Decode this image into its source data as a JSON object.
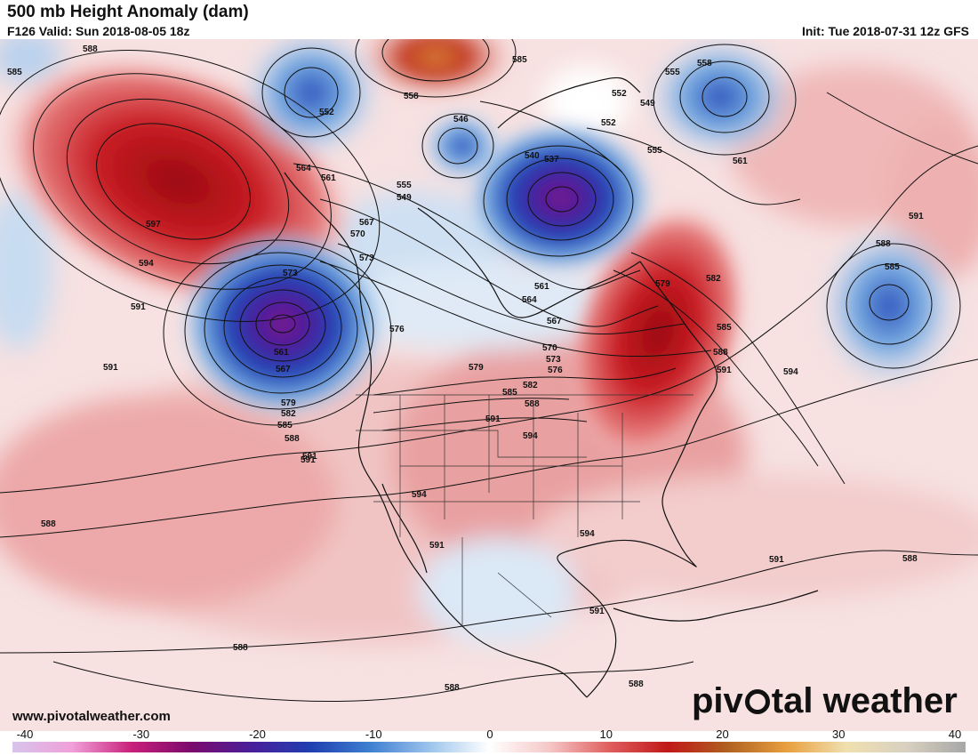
{
  "header": {
    "title": "500 mb Height Anomaly (dam)",
    "valid": "F126 Valid: Sun 2018-08-05 18z",
    "init": "Init: Tue 2018-07-31 12z GFS"
  },
  "footer": {
    "website": "www.pivotalweather.com",
    "brand_left": "piv",
    "brand_right": "tal weather"
  },
  "colorbar": {
    "ticks": [
      "-40",
      "-30",
      "-20",
      "-10",
      "0",
      "10",
      "20",
      "30",
      "40"
    ],
    "min": -40,
    "max": 40,
    "stops": [
      "#d8c4ec",
      "#f0a0d8",
      "#c8207a",
      "#7a0a6c",
      "#4a1e9a",
      "#1f3fb0",
      "#3f7fd0",
      "#9cc4ec",
      "#ffffff",
      "#f6c8c8",
      "#e06060",
      "#c01818",
      "#b06020",
      "#e8a040",
      "#f0e0b0",
      "#d8d0c0",
      "#a8a8a8"
    ]
  },
  "anomaly_centers": [
    {
      "kind": "positive",
      "label": "597",
      "strength": 0.95
    },
    {
      "kind": "negative",
      "label": "561",
      "strength": 0.95
    },
    {
      "kind": "negative",
      "label": "537",
      "strength": 1.0
    },
    {
      "kind": "negative",
      "label": "549",
      "strength": 0.7
    },
    {
      "kind": "negative",
      "label": "585",
      "strength": 0.55
    },
    {
      "kind": "positive",
      "label": "579",
      "strength": 0.8
    },
    {
      "kind": "positive",
      "label": "558",
      "strength": 0.7
    }
  ],
  "contour_labels": [
    "585",
    "588",
    "597",
    "594",
    "591",
    "564",
    "561",
    "555",
    "552",
    "549",
    "558",
    "546",
    "540",
    "537",
    "552",
    "555",
    "558",
    "549",
    "552",
    "561",
    "591",
    "588",
    "585",
    "573",
    "567",
    "570",
    "573",
    "561",
    "567",
    "576",
    "579",
    "582",
    "585",
    "588",
    "591",
    "591",
    "588",
    "579",
    "582",
    "585",
    "588",
    "591",
    "594",
    "576",
    "573",
    "570",
    "564",
    "567",
    "561",
    "579",
    "582",
    "585",
    "588",
    "591",
    "594",
    "594",
    "591",
    "594",
    "591",
    "588",
    "588",
    "588",
    "591",
    "588",
    "585",
    "591",
    "555"
  ]
}
